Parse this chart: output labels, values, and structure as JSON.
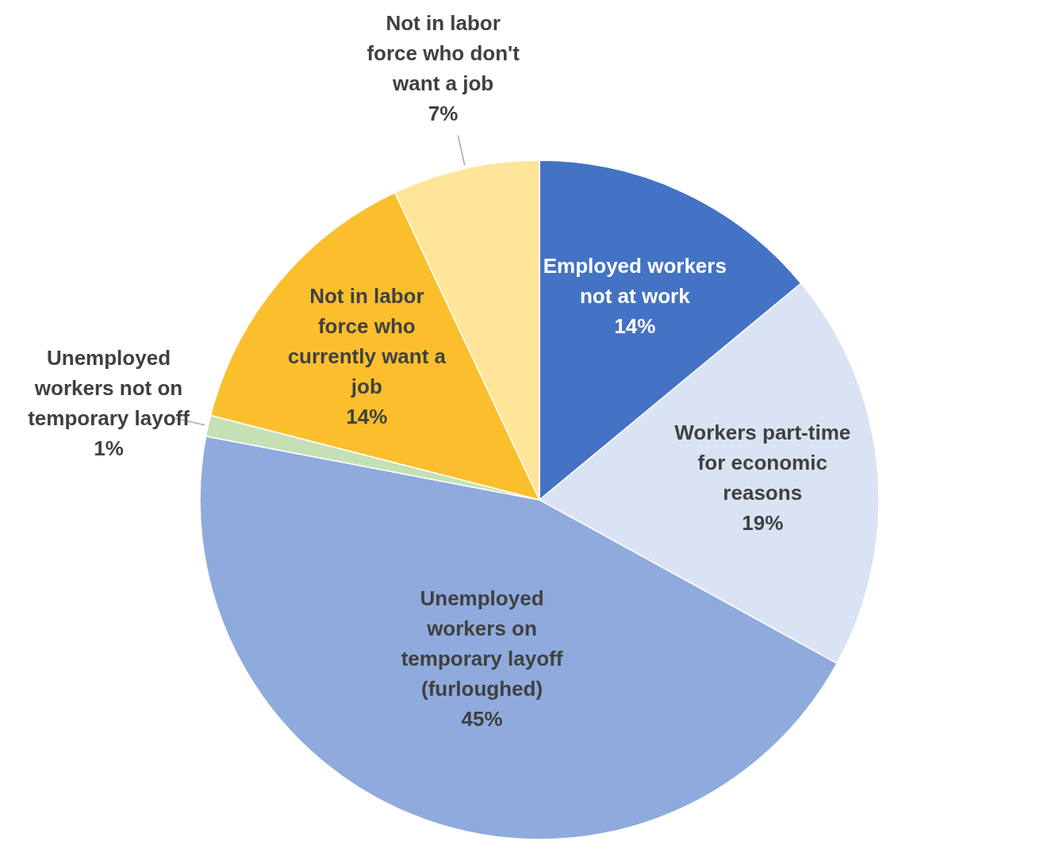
{
  "chart_data": {
    "type": "pie",
    "categories": [
      "Employed workers not at work",
      "Workers part-time for economic reasons",
      "Unemployed workers on temporary layoff (furloughed)",
      "Unemployed workers not on temporary layoff",
      "Not in labor force who currently want a job",
      "Not in labor force who don't want a job"
    ],
    "values": [
      14,
      19,
      45,
      1,
      14,
      7
    ],
    "value_labels": [
      "14%",
      "19%",
      "45%",
      "1%",
      "14%",
      "7%"
    ],
    "colors": [
      "#4472c4",
      "#dae3f3",
      "#8faadc",
      "#c5e0b4",
      "#fbbf2d",
      "#fee599"
    ]
  }
}
